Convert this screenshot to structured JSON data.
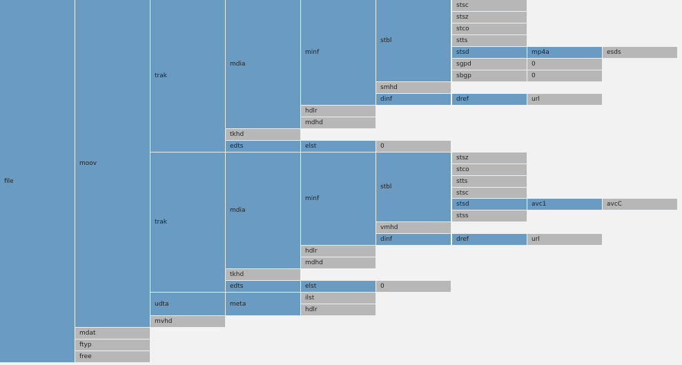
{
  "colors": {
    "container": "#6a9cc3",
    "leaf": "#b7b7b7",
    "background": "#f2f2f2"
  },
  "boxes": [
    {
      "label": "file",
      "kind": "container"
    },
    {
      "label": "moov",
      "kind": "container"
    },
    {
      "label": "mdat",
      "kind": "leaf"
    },
    {
      "label": "ftyp",
      "kind": "leaf"
    },
    {
      "label": "free",
      "kind": "leaf"
    },
    {
      "label": "trak",
      "kind": "container"
    },
    {
      "label": "mdia",
      "kind": "container"
    },
    {
      "label": "minf",
      "kind": "container"
    },
    {
      "label": "stbl",
      "kind": "container"
    },
    {
      "label": "stsc",
      "kind": "leaf"
    },
    {
      "label": "stsz",
      "kind": "leaf"
    },
    {
      "label": "stco",
      "kind": "leaf"
    },
    {
      "label": "stts",
      "kind": "leaf"
    },
    {
      "label": "stsd",
      "kind": "container"
    },
    {
      "label": "mp4a",
      "kind": "container"
    },
    {
      "label": "esds",
      "kind": "leaf"
    },
    {
      "label": "sgpd",
      "kind": "leaf"
    },
    {
      "label": "0",
      "kind": "leaf"
    },
    {
      "label": "sbgp",
      "kind": "leaf"
    },
    {
      "label": "0",
      "kind": "leaf"
    },
    {
      "label": "smhd",
      "kind": "leaf"
    },
    {
      "label": "dinf",
      "kind": "container"
    },
    {
      "label": "dref",
      "kind": "container"
    },
    {
      "label": "url",
      "kind": "leaf"
    },
    {
      "label": "hdlr",
      "kind": "leaf"
    },
    {
      "label": "mdhd",
      "kind": "leaf"
    },
    {
      "label": "tkhd",
      "kind": "leaf"
    },
    {
      "label": "edts",
      "kind": "container"
    },
    {
      "label": "elst",
      "kind": "container"
    },
    {
      "label": "0",
      "kind": "leaf"
    },
    {
      "label": "trak",
      "kind": "container"
    },
    {
      "label": "mdia",
      "kind": "container"
    },
    {
      "label": "minf",
      "kind": "container"
    },
    {
      "label": "stbl",
      "kind": "container"
    },
    {
      "label": "stsz",
      "kind": "leaf"
    },
    {
      "label": "stco",
      "kind": "leaf"
    },
    {
      "label": "stts",
      "kind": "leaf"
    },
    {
      "label": "stsc",
      "kind": "leaf"
    },
    {
      "label": "stsd",
      "kind": "container"
    },
    {
      "label": "avc1",
      "kind": "container"
    },
    {
      "label": "avcC",
      "kind": "leaf"
    },
    {
      "label": "stss",
      "kind": "leaf"
    },
    {
      "label": "vmhd",
      "kind": "leaf"
    },
    {
      "label": "dinf",
      "kind": "container"
    },
    {
      "label": "dref",
      "kind": "container"
    },
    {
      "label": "url",
      "kind": "leaf"
    },
    {
      "label": "hdlr",
      "kind": "leaf"
    },
    {
      "label": "mdhd",
      "kind": "leaf"
    },
    {
      "label": "tkhd",
      "kind": "leaf"
    },
    {
      "label": "edts",
      "kind": "container"
    },
    {
      "label": "elst",
      "kind": "container"
    },
    {
      "label": "0",
      "kind": "leaf"
    },
    {
      "label": "udta",
      "kind": "container"
    },
    {
      "label": "meta",
      "kind": "container"
    },
    {
      "label": "ilst",
      "kind": "leaf"
    },
    {
      "label": "hdlr",
      "kind": "leaf"
    },
    {
      "label": "mvhd",
      "kind": "leaf"
    }
  ]
}
